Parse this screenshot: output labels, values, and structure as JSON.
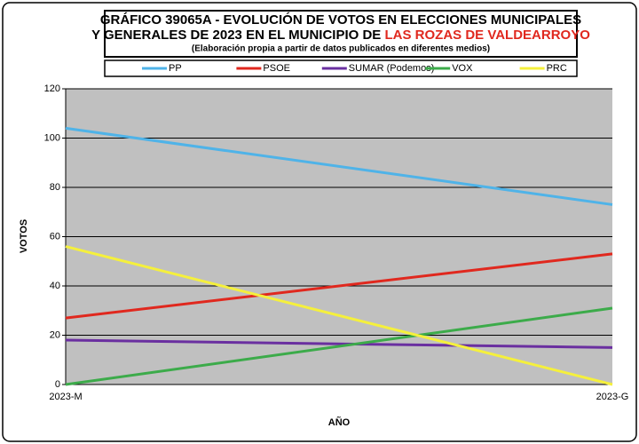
{
  "chart_data": {
    "type": "line",
    "title": "GRÁFICO 39065A - EVOLUCIÓN DE VOTOS EN ELECCIONES MUNICIPALES",
    "title_line2": "Y GENERALES DE 2023 EN EL MUNICIPIO DE",
    "title_highlight": "LAS ROZAS DE VALDEARROYO",
    "subtitle": "(Elaboración propia a partir de datos publicados en diferentes medios)",
    "x_label": "AÑO",
    "y_label": "VOTOS",
    "categories": [
      "2023-M",
      "2023-G"
    ],
    "series": [
      {
        "name": "PP",
        "color": "#4fb3e8",
        "values": [
          104,
          73
        ]
      },
      {
        "name": "PSOE",
        "color": "#e0281e",
        "values": [
          27,
          53
        ]
      },
      {
        "name": "SUMAR (Podemos)",
        "color": "#6a2fa0",
        "values": [
          18,
          15
        ]
      },
      {
        "name": "VOX",
        "color": "#3cab4a",
        "values": [
          0,
          31
        ]
      },
      {
        "name": "PRC",
        "color": "#f5f03c",
        "values": [
          56,
          0
        ]
      }
    ],
    "ylim": [
      0,
      120
    ],
    "yticks": [
      0,
      20,
      40,
      60,
      80,
      100,
      120
    ],
    "grid": true
  }
}
